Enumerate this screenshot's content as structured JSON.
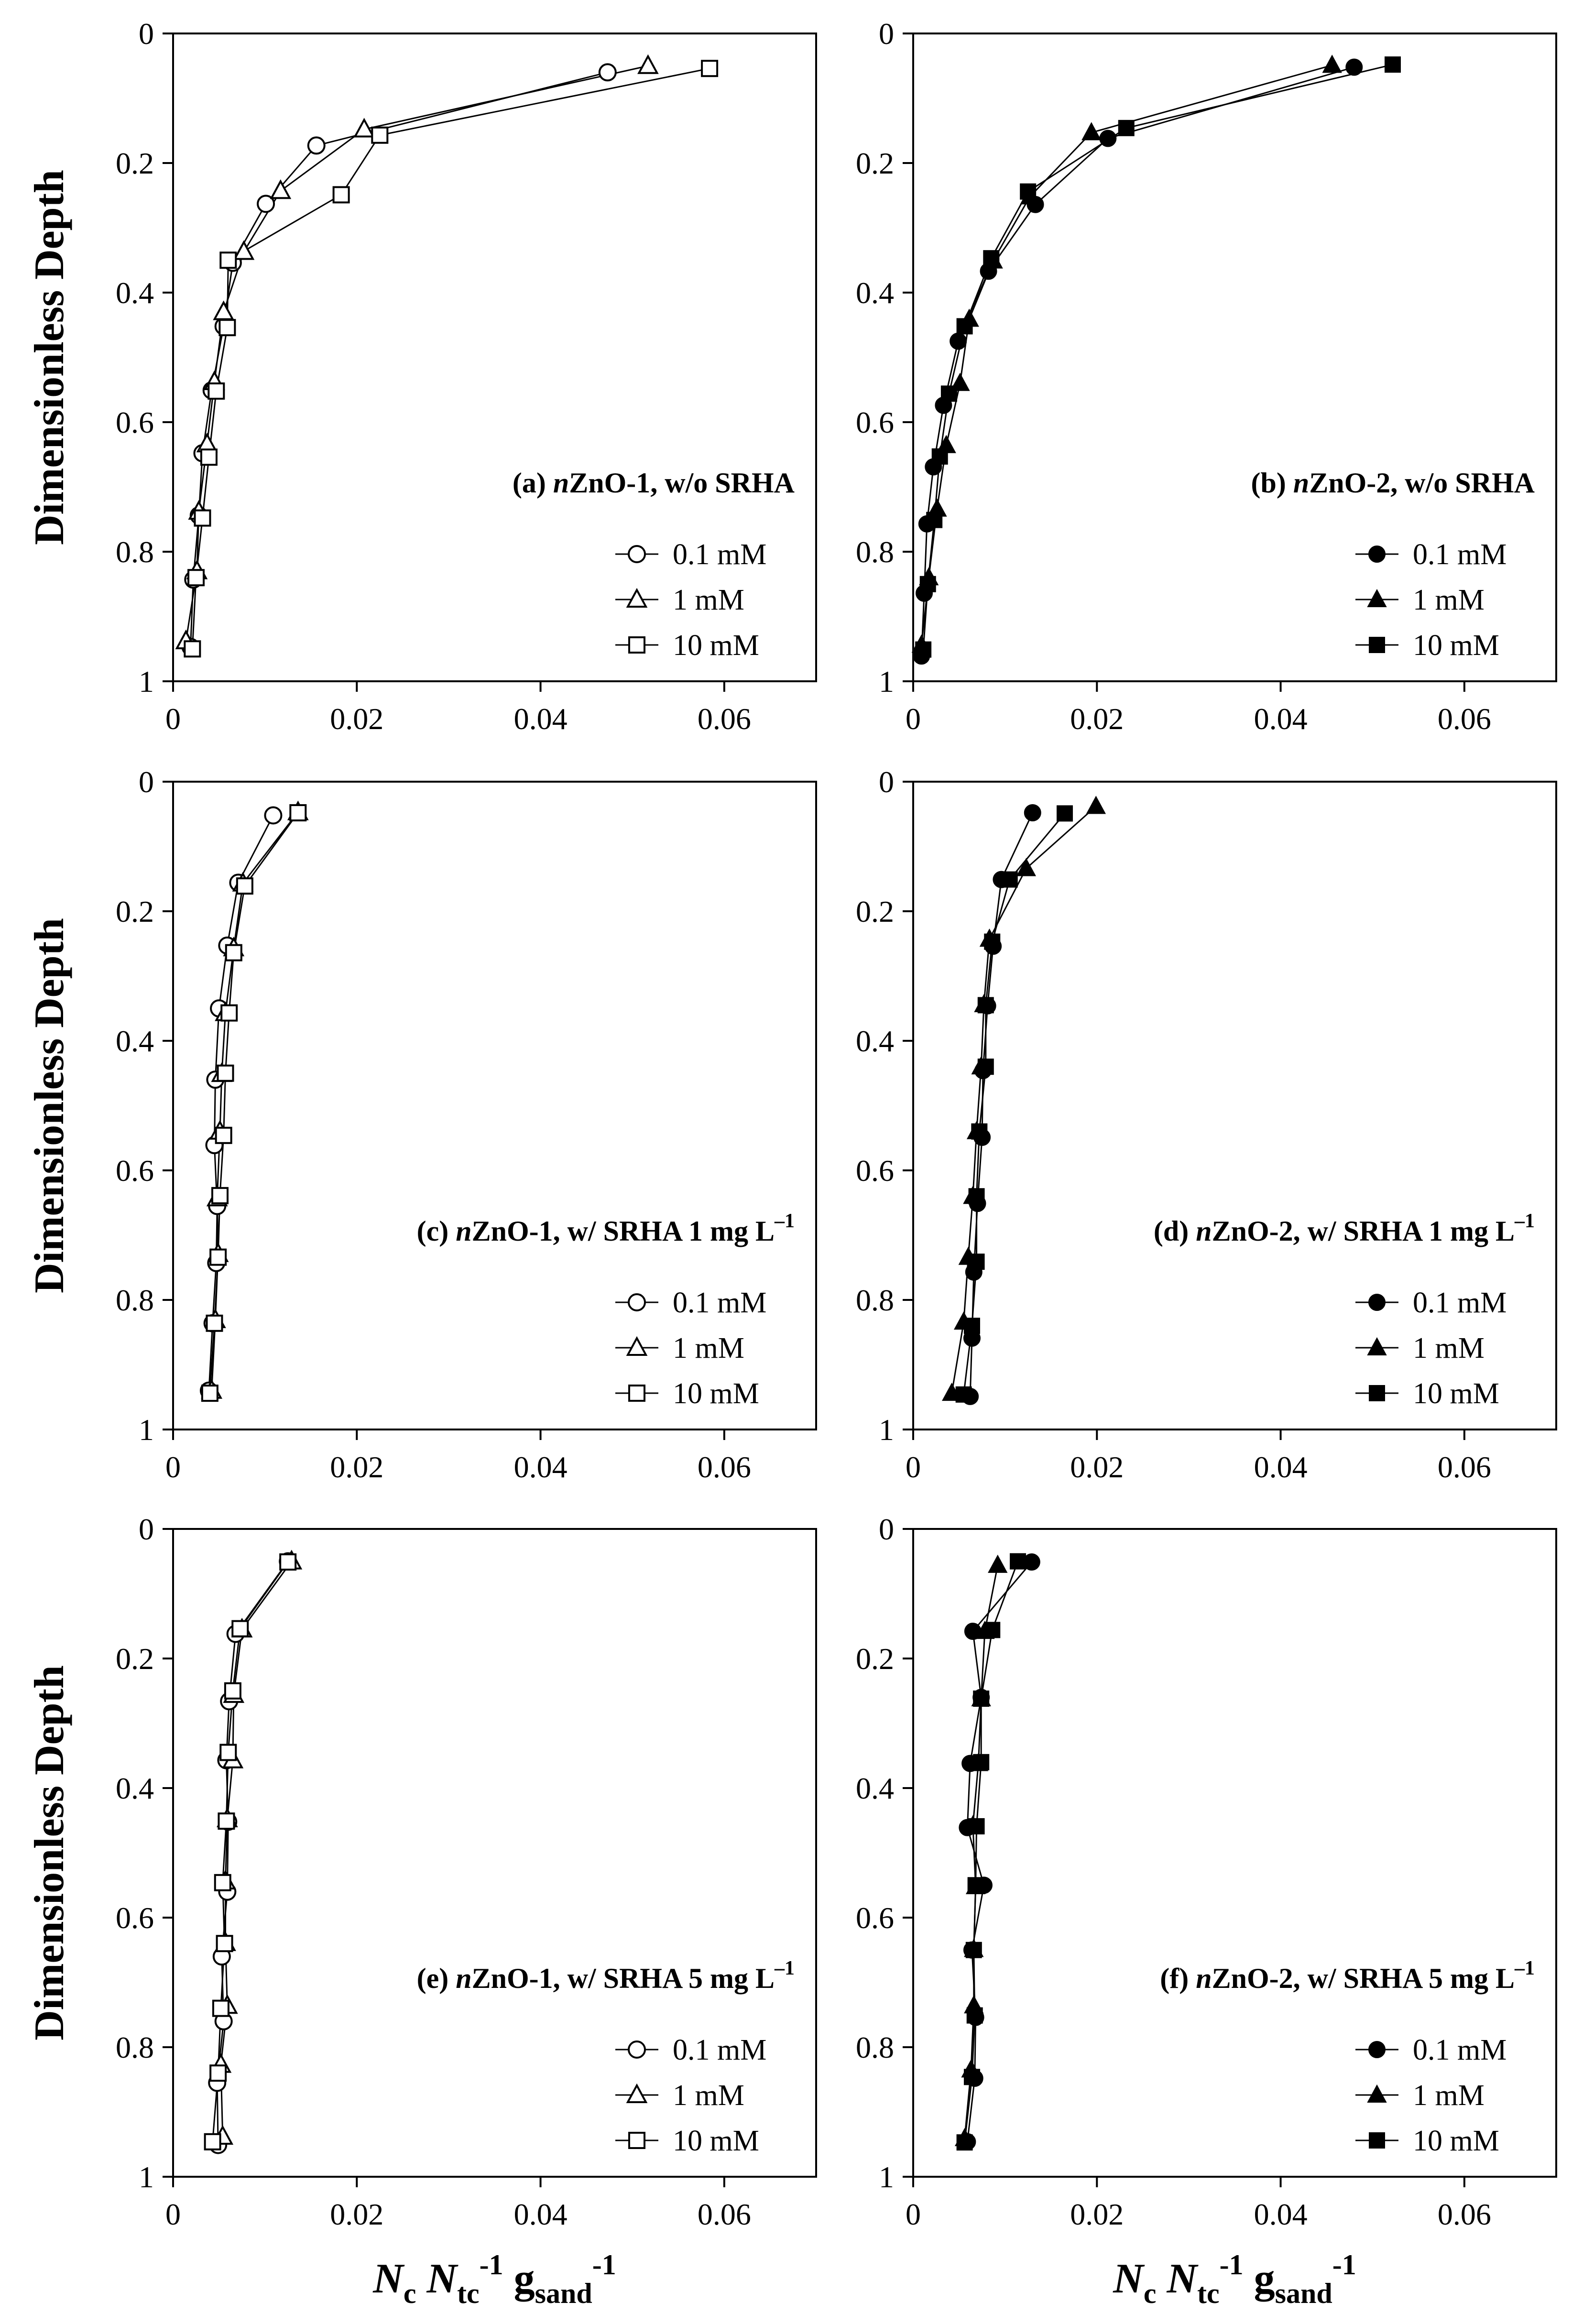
{
  "figure": {
    "ylabel": "Dimensionless Depth",
    "xlabel": {
      "n1": "N",
      "c": "c",
      "n2": " N",
      "tc": "tc",
      "m1": "-1",
      "g": " g",
      "sand": "sand",
      "m2": "-1"
    }
  },
  "chart_data": [
    {
      "type": "line",
      "id": "a",
      "title": {
        "pre": "(a) ",
        "ital": "n",
        "post": "ZnO-1, w/o SRHA",
        "sup": ""
      },
      "marker_fill": "open",
      "xlim": [
        0,
        0.07
      ],
      "ylim": [
        1,
        0
      ],
      "xticks": [
        "0",
        "0.02",
        "0.04",
        "0.06"
      ],
      "yticks": [
        "0",
        "0.2",
        "0.4",
        "0.6",
        "0.8",
        "1"
      ],
      "series": [
        {
          "name": "0.1 mM",
          "marker": "circle",
          "x": [
            0.0473,
            0.0156,
            0.0101,
            0.0065,
            0.0055,
            0.0042,
            0.0032,
            0.0028,
            0.0022,
            0.0019
          ],
          "y": [
            0.06,
            0.173,
            0.263,
            0.354,
            0.452,
            0.551,
            0.648,
            0.744,
            0.843,
            0.947
          ]
        },
        {
          "name": "1 mM",
          "marker": "triangle",
          "x": [
            0.0517,
            0.0208,
            0.0117,
            0.0077,
            0.0055,
            0.0045,
            0.0037,
            0.0028,
            0.0026,
            0.0014
          ],
          "y": [
            0.05,
            0.148,
            0.243,
            0.337,
            0.43,
            0.538,
            0.634,
            0.738,
            0.83,
            0.938
          ]
        },
        {
          "name": "10 mM",
          "marker": "square",
          "x": [
            0.0584,
            0.0225,
            0.0183,
            0.006,
            0.0059,
            0.0047,
            0.0039,
            0.0032,
            0.0025,
            0.0021
          ],
          "y": [
            0.054,
            0.157,
            0.249,
            0.35,
            0.454,
            0.552,
            0.654,
            0.748,
            0.84,
            0.95
          ]
        }
      ]
    },
    {
      "type": "line",
      "id": "b",
      "title": {
        "pre": "(b) ",
        "ital": "n",
        "post": "ZnO-2, w/o SRHA",
        "sup": ""
      },
      "marker_fill": "solid",
      "xlim": [
        0,
        0.07
      ],
      "ylim": [
        1,
        0
      ],
      "xticks": [
        "0",
        "0.02",
        "0.04",
        "0.06"
      ],
      "yticks": [
        "0",
        "0.2",
        "0.4",
        "0.6",
        "0.8",
        "1"
      ],
      "series": [
        {
          "name": "0.1 mM",
          "marker": "circle",
          "x": [
            0.048,
            0.0212,
            0.0133,
            0.0082,
            0.0049,
            0.0033,
            0.0022,
            0.0015,
            0.0012,
            0.0009
          ],
          "y": [
            0.052,
            0.162,
            0.264,
            0.367,
            0.475,
            0.574,
            0.669,
            0.757,
            0.864,
            0.961
          ]
        },
        {
          "name": "1 mM",
          "marker": "triangle",
          "x": [
            0.0456,
            0.0194,
            0.0127,
            0.0087,
            0.0061,
            0.0051,
            0.0036,
            0.0026,
            0.0017,
            0.0009
          ],
          "y": [
            0.049,
            0.153,
            0.252,
            0.351,
            0.441,
            0.54,
            0.636,
            0.734,
            0.84,
            0.944
          ]
        },
        {
          "name": "10 mM",
          "marker": "square",
          "x": [
            0.0522,
            0.0232,
            0.0125,
            0.0085,
            0.0056,
            0.0039,
            0.0029,
            0.0023,
            0.0016,
            0.0011
          ],
          "y": [
            0.048,
            0.146,
            0.244,
            0.347,
            0.452,
            0.556,
            0.653,
            0.751,
            0.85,
            0.951
          ]
        }
      ]
    },
    {
      "type": "line",
      "id": "c",
      "title": {
        "pre": "(c) ",
        "ital": "n",
        "post": "ZnO-1, w/ SRHA 1 mg L",
        "sup": "–1"
      },
      "marker_fill": "open",
      "xlim": [
        0,
        0.07
      ],
      "ylim": [
        1,
        0
      ],
      "xticks": [
        "0",
        "0.02",
        "0.04",
        "0.06"
      ],
      "yticks": [
        "0",
        "0.2",
        "0.4",
        "0.6",
        "0.8",
        "1"
      ],
      "series": [
        {
          "name": "0.1 mM",
          "marker": "circle",
          "x": [
            0.0109,
            0.0071,
            0.0059,
            0.005,
            0.0046,
            0.0045,
            0.0048,
            0.0047,
            0.0043,
            0.0039
          ],
          "y": [
            0.052,
            0.156,
            0.253,
            0.35,
            0.46,
            0.561,
            0.655,
            0.743,
            0.836,
            0.94
          ]
        },
        {
          "name": "1 mM",
          "marker": "triangle",
          "x": [
            0.0136,
            0.0076,
            0.0066,
            0.0057,
            0.0053,
            0.0051,
            0.0048,
            0.0049,
            0.0046,
            0.0042
          ],
          "y": [
            0.047,
            0.157,
            0.257,
            0.357,
            0.451,
            0.54,
            0.643,
            0.729,
            0.831,
            0.94
          ]
        },
        {
          "name": "10 mM",
          "marker": "square",
          "x": [
            0.0136,
            0.0078,
            0.0066,
            0.0061,
            0.0057,
            0.0055,
            0.0051,
            0.0049,
            0.0045,
            0.004
          ],
          "y": [
            0.048,
            0.161,
            0.264,
            0.357,
            0.45,
            0.546,
            0.639,
            0.734,
            0.836,
            0.944
          ]
        }
      ]
    },
    {
      "type": "line",
      "id": "d",
      "title": {
        "pre": "(d) ",
        "ital": "n",
        "post": "ZnO-2, w/ SRHA 1 mg L",
        "sup": "–1"
      },
      "marker_fill": "solid",
      "xlim": [
        0,
        0.07
      ],
      "ylim": [
        1,
        0
      ],
      "xticks": [
        "0",
        "0.02",
        "0.04",
        "0.06"
      ],
      "yticks": [
        "0",
        "0.2",
        "0.4",
        "0.6",
        "0.8",
        "1"
      ],
      "series": [
        {
          "name": "0.1 mM",
          "marker": "circle",
          "x": [
            0.013,
            0.0096,
            0.0087,
            0.0081,
            0.0076,
            0.0075,
            0.007,
            0.0066,
            0.0064,
            0.0062
          ],
          "y": [
            0.048,
            0.151,
            0.254,
            0.346,
            0.446,
            0.549,
            0.651,
            0.757,
            0.859,
            0.949
          ]
        },
        {
          "name": "1 mM",
          "marker": "triangle",
          "x": [
            0.0199,
            0.0123,
            0.0083,
            0.0077,
            0.0074,
            0.0069,
            0.0065,
            0.006,
            0.0055,
            0.0042
          ],
          "y": [
            0.038,
            0.134,
            0.243,
            0.344,
            0.44,
            0.54,
            0.64,
            0.734,
            0.834,
            0.944
          ]
        },
        {
          "name": "10 mM",
          "marker": "square",
          "x": [
            0.0165,
            0.0105,
            0.0086,
            0.0079,
            0.0079,
            0.0072,
            0.0069,
            0.0069,
            0.0064,
            0.0055
          ],
          "y": [
            0.049,
            0.151,
            0.247,
            0.345,
            0.44,
            0.54,
            0.64,
            0.741,
            0.84,
            0.946
          ]
        }
      ]
    },
    {
      "type": "line",
      "id": "e",
      "title": {
        "pre": "(e) ",
        "ital": "n",
        "post": "ZnO-1, w/ SRHA 5 mg L",
        "sup": "–1"
      },
      "marker_fill": "open",
      "xlim": [
        0,
        0.07
      ],
      "ylim": [
        1,
        0
      ],
      "xticks": [
        "0",
        "0.02",
        "0.04",
        "0.06"
      ],
      "yticks": [
        "0",
        "0.2",
        "0.4",
        "0.6",
        "0.8",
        "1"
      ],
      "series": [
        {
          "name": "0.1 mM",
          "marker": "circle",
          "x": [
            0.0125,
            0.0068,
            0.0061,
            0.0058,
            0.006,
            0.0059,
            0.0053,
            0.0055,
            0.0048,
            0.0049
          ],
          "y": [
            0.05,
            0.162,
            0.266,
            0.357,
            0.452,
            0.56,
            0.66,
            0.76,
            0.855,
            0.951
          ]
        },
        {
          "name": "1 mM",
          "marker": "triangle",
          "x": [
            0.0129,
            0.0075,
            0.0066,
            0.0065,
            0.0059,
            0.0057,
            0.0057,
            0.0059,
            0.0052,
            0.0054
          ],
          "y": [
            0.05,
            0.155,
            0.256,
            0.357,
            0.448,
            0.544,
            0.639,
            0.736,
            0.827,
            0.938
          ]
        },
        {
          "name": "10 mM",
          "marker": "square",
          "x": [
            0.0125,
            0.0073,
            0.0065,
            0.006,
            0.0058,
            0.0054,
            0.0056,
            0.0052,
            0.0049,
            0.0043
          ],
          "y": [
            0.051,
            0.154,
            0.25,
            0.345,
            0.451,
            0.546,
            0.64,
            0.74,
            0.84,
            0.946
          ]
        }
      ]
    },
    {
      "type": "line",
      "id": "f",
      "title": {
        "pre": "(f) ",
        "ital": "n",
        "post": "ZnO-2, w/ SRHA 5 mg L",
        "sup": "–1"
      },
      "marker_fill": "solid",
      "xlim": [
        0,
        0.07
      ],
      "ylim": [
        1,
        0
      ],
      "xticks": [
        "0",
        "0.02",
        "0.04",
        "0.06"
      ],
      "yticks": [
        "0",
        "0.2",
        "0.4",
        "0.6",
        "0.8",
        "1"
      ],
      "series": [
        {
          "name": "0.1 mM",
          "marker": "circle",
          "x": [
            0.0129,
            0.0065,
            0.0074,
            0.0062,
            0.0059,
            0.0077,
            0.0064,
            0.0068,
            0.0067,
            0.0059
          ],
          "y": [
            0.051,
            0.158,
            0.26,
            0.362,
            0.461,
            0.55,
            0.65,
            0.754,
            0.848,
            0.946
          ]
        },
        {
          "name": "1 mM",
          "marker": "triangle",
          "x": [
            0.0092,
            0.0078,
            0.0074,
            0.0071,
            0.0065,
            0.0068,
            0.0066,
            0.0066,
            0.0063,
            0.0056
          ],
          "y": [
            0.056,
            0.158,
            0.262,
            0.362,
            0.458,
            0.552,
            0.649,
            0.736,
            0.835,
            0.941
          ]
        },
        {
          "name": "10 mM",
          "marker": "square",
          "x": [
            0.0114,
            0.0086,
            0.0074,
            0.0074,
            0.0069,
            0.0068,
            0.0066,
            0.0067,
            0.0064,
            0.0056
          ],
          "y": [
            0.05,
            0.156,
            0.262,
            0.36,
            0.459,
            0.55,
            0.65,
            0.751,
            0.846,
            0.947
          ]
        }
      ]
    }
  ]
}
